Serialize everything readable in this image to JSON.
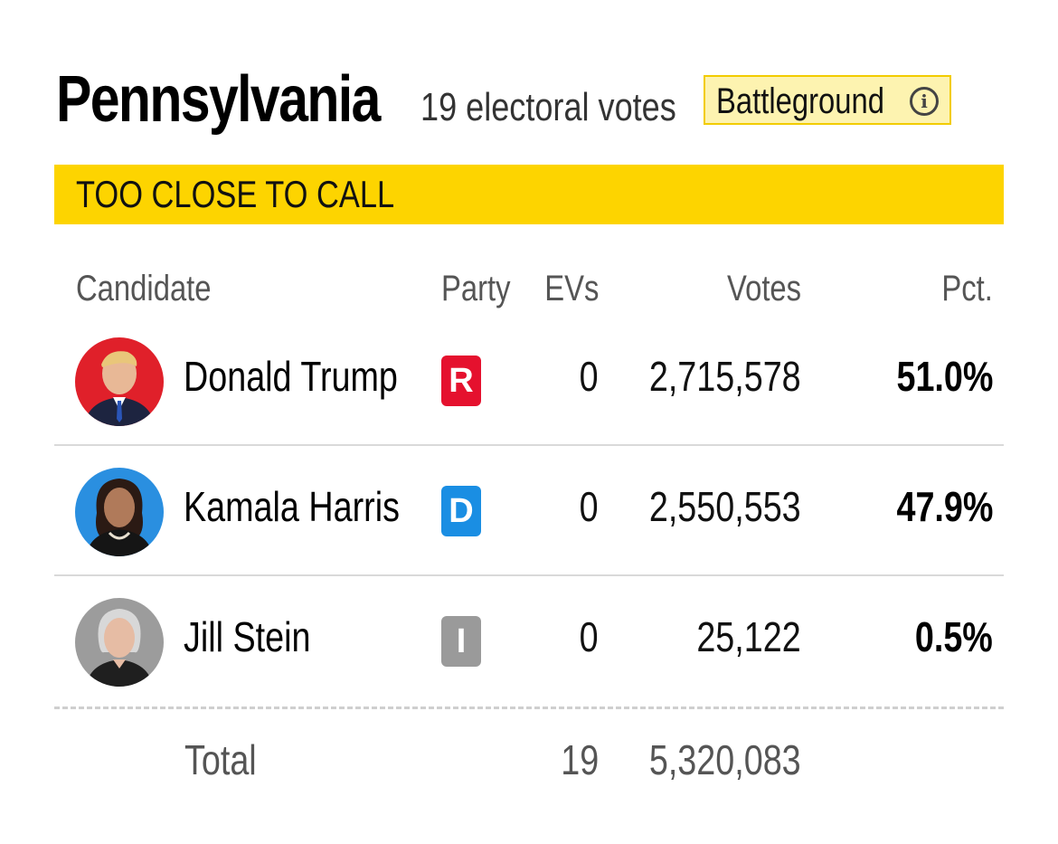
{
  "header": {
    "state": "Pennsylvania",
    "electoral_votes": "19 electoral votes",
    "badge": "Battleground",
    "info_glyph": "i"
  },
  "status": "TOO CLOSE TO CALL",
  "columns": {
    "candidate": "Candidate",
    "party": "Party",
    "evs": "EVs",
    "votes": "Votes",
    "pct": "Pct."
  },
  "candidates": [
    {
      "name": "Donald Trump",
      "party": "R",
      "party_color": "#e5112e",
      "evs": "0",
      "votes": "2,715,578",
      "pct": "51.0%",
      "avatar_bg": "#e0202a"
    },
    {
      "name": "Kamala Harris",
      "party": "D",
      "party_color": "#1a8ee3",
      "evs": "0",
      "votes": "2,550,553",
      "pct": "47.9%",
      "avatar_bg": "#2a8fe0"
    },
    {
      "name": "Jill Stein",
      "party": "I",
      "party_color": "#9a9a9a",
      "evs": "0",
      "votes": "25,122",
      "pct": "0.5%",
      "avatar_bg": "#9c9c9c"
    }
  ],
  "total": {
    "label": "Total",
    "evs": "19",
    "votes": "5,320,083"
  },
  "colors": {
    "status_bar": "#fdd400",
    "badge_bg": "#fdf3b0",
    "badge_border": "#f2cc00"
  }
}
